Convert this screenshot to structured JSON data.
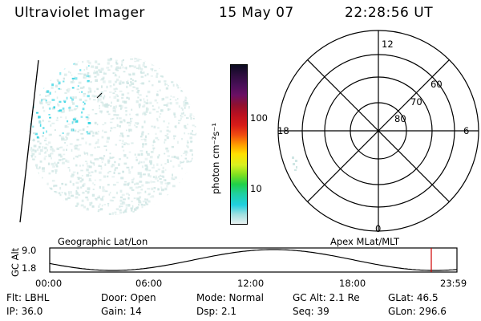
{
  "header": {
    "instrument": "Ultraviolet Imager",
    "date": "15 May 07",
    "time": "22:28:56 UT"
  },
  "colorbar": {
    "unit_label": "photon cm⁻²s⁻¹",
    "ticks": [
      "100",
      "10"
    ],
    "colors": [
      "#0b0b20",
      "#2b0d3c",
      "#4a0f58",
      "#6a0f64",
      "#8e1030",
      "#b81020",
      "#d81c18",
      "#f04c10",
      "#ff9a00",
      "#ffe000",
      "#d8f020",
      "#80e020",
      "#20d048",
      "#20d0a0",
      "#20d0e0",
      "#a0e0e0",
      "#e8f0f0"
    ]
  },
  "polar": {
    "mlt_labels": {
      "top": "12",
      "left": "18",
      "right": "6",
      "bottom": "0"
    },
    "lat_labels": [
      "60",
      "70",
      "80"
    ]
  },
  "timeline": {
    "left_label": "Geographic Lat/Lon",
    "right_label": "Apex  MLat/MLT",
    "y_axis_title": "GC Alt",
    "y_ticks": [
      "9.0",
      "1.8"
    ],
    "x_ticks": [
      "00:00",
      "06:00",
      "12:00",
      "18:00",
      "23:59"
    ],
    "current_time_fraction": 0.937
  },
  "info": {
    "row1": [
      "Flt: LBHL",
      "Door: Open",
      "Mode:  Normal",
      "GC Alt: 2.1 Re",
      "GLat:  46.5"
    ],
    "row2": [
      "IP: 36.0",
      "Gain: 14",
      "Dsp:     2.1",
      "Seq: 39",
      "GLon: 296.6"
    ]
  },
  "colors": {
    "aurora_cyan": "#20d0e0",
    "aurora_pale": "#cfe6e4",
    "cursor_red": "#d00000"
  }
}
